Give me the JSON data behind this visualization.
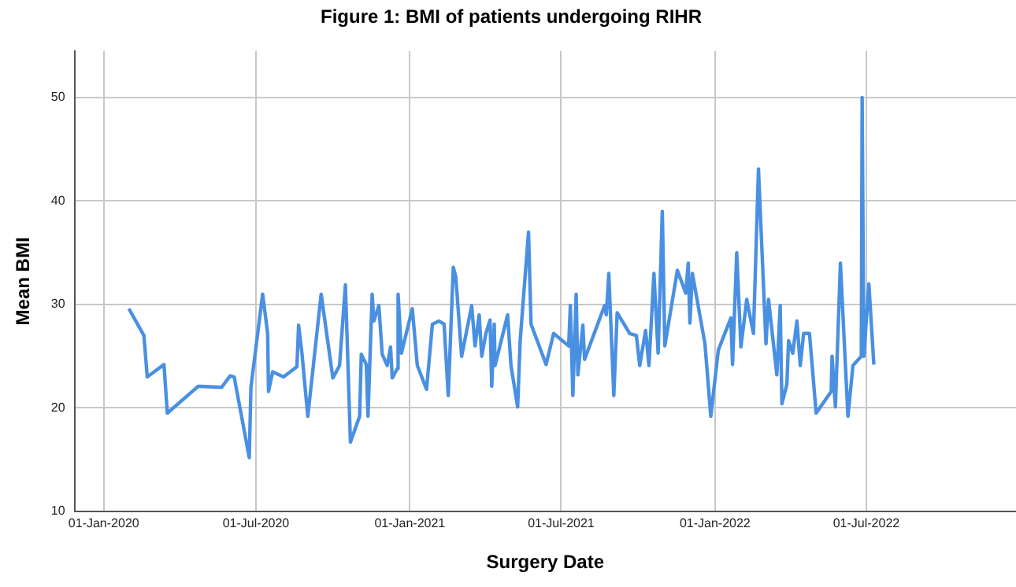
{
  "chart_data": {
    "type": "line",
    "title": "Figure 1: BMI of patients undergoing RIHR",
    "xlabel": "Surgery Date",
    "ylabel": "Mean BMI",
    "xlim": [
      "2019-11-27",
      "2022-12-27"
    ],
    "xticks": [
      {
        "value": "2020-01-01",
        "label": "01-Jan-2020"
      },
      {
        "value": "2020-07-01",
        "label": "01-Jul-2020"
      },
      {
        "value": "2021-01-01",
        "label": "01-Jan-2021"
      },
      {
        "value": "2021-07-01",
        "label": "01-Jul-2021"
      },
      {
        "value": "2022-01-01",
        "label": "01-Jan-2022"
      },
      {
        "value": "2022-07-01",
        "label": "01-Jul-2022"
      }
    ],
    "ylim": [
      10,
      54.5
    ],
    "yticks": [
      10,
      20,
      30,
      40,
      50
    ],
    "grid": true,
    "legend": false,
    "marker": "none",
    "line_style": "solid",
    "x": [
      "2020-01-31",
      "2020-02-18",
      "2020-02-22",
      "2020-03-13",
      "2020-03-17",
      "2020-04-23",
      "2020-05-21",
      "2020-05-31",
      "2020-06-05",
      "2020-06-23",
      "2020-06-25",
      "2020-07-09",
      "2020-07-15",
      "2020-07-16",
      "2020-07-21",
      "2020-08-03",
      "2020-08-19",
      "2020-08-21",
      "2020-08-25",
      "2020-09-01",
      "2020-09-17",
      "2020-10-01",
      "2020-10-09",
      "2020-10-16",
      "2020-10-22",
      "2020-11-02",
      "2020-11-04",
      "2020-11-10",
      "2020-11-12",
      "2020-11-17",
      "2020-11-19",
      "2020-11-25",
      "2020-11-29",
      "2020-12-05",
      "2020-12-09",
      "2020-12-11",
      "2020-12-17",
      "2020-12-18",
      "2020-12-22",
      "2021-01-04",
      "2021-01-10",
      "2021-01-21",
      "2021-01-28",
      "2021-02-05",
      "2021-02-11",
      "2021-02-16",
      "2021-02-22",
      "2021-02-25",
      "2021-03-04",
      "2021-03-16",
      "2021-03-20",
      "2021-03-25",
      "2021-03-28",
      "2021-04-02",
      "2021-04-07",
      "2021-04-09",
      "2021-04-12",
      "2021-04-13",
      "2021-04-28",
      "2021-05-02",
      "2021-05-10",
      "2021-05-13",
      "2021-05-23",
      "2021-05-26",
      "2021-06-13",
      "2021-06-22",
      "2021-07-10",
      "2021-07-12",
      "2021-07-15",
      "2021-07-19",
      "2021-07-21",
      "2021-07-27",
      "2021-07-29",
      "2021-08-22",
      "2021-08-24",
      "2021-08-27",
      "2021-09-02",
      "2021-09-06",
      "2021-09-21",
      "2021-09-29",
      "2021-10-03",
      "2021-10-10",
      "2021-10-14",
      "2021-10-20",
      "2021-10-25",
      "2021-10-30",
      "2021-11-02",
      "2021-11-17",
      "2021-11-27",
      "2021-11-30",
      "2021-12-02",
      "2021-12-05",
      "2021-12-20",
      "2021-12-27",
      "2022-01-05",
      "2022-01-20",
      "2022-01-22",
      "2022-01-27",
      "2022-02-01",
      "2022-02-08",
      "2022-02-16",
      "2022-02-22",
      "2022-03-03",
      "2022-03-06",
      "2022-03-16",
      "2022-03-20",
      "2022-03-22",
      "2022-03-28",
      "2022-03-30",
      "2022-04-04",
      "2022-04-09",
      "2022-04-13",
      "2022-04-17",
      "2022-04-24",
      "2022-05-02",
      "2022-05-20",
      "2022-05-21",
      "2022-05-25",
      "2022-05-31",
      "2022-06-09",
      "2022-06-15",
      "2022-06-25",
      "2022-06-26",
      "2022-06-28",
      "2022-07-04",
      "2022-07-10"
    ],
    "series": [
      {
        "color": "#4a90e2",
        "values": [
          29.6,
          27,
          23,
          24.2,
          19.5,
          22.1,
          22,
          23.1,
          23,
          15.2,
          22,
          31,
          27.2,
          21.6,
          23.5,
          23,
          24,
          28,
          25.3,
          19.2,
          31,
          22.9,
          24.1,
          31.9,
          16.7,
          19.2,
          25.2,
          24.2,
          19.2,
          31,
          28.4,
          29.9,
          25.2,
          24.1,
          25.9,
          22.9,
          23.8,
          31,
          25.3,
          29.6,
          24.1,
          21.8,
          28.1,
          28.4,
          28.1,
          21.2,
          33.6,
          32.7,
          25,
          29.9,
          26,
          29,
          25,
          27.2,
          28.5,
          22.1,
          28.1,
          24.1,
          29,
          24.1,
          20.1,
          26.5,
          37,
          28.1,
          24.2,
          27.2,
          26,
          29.9,
          21.2,
          31,
          23.2,
          28,
          24.7,
          29.9,
          29,
          33,
          21.2,
          29.2,
          27.2,
          27,
          24.1,
          27.5,
          24.1,
          33,
          25.3,
          39,
          26,
          33.3,
          31.1,
          34,
          28.2,
          33,
          26.2,
          19.2,
          25.6,
          28.7,
          24.2,
          35,
          25.9,
          30.5,
          27.2,
          43.1,
          26.2,
          30.5,
          23.2,
          29.9,
          20.4,
          22.3,
          26.5,
          25.3,
          28.4,
          24.1,
          27.2,
          27.2,
          19.5,
          21.6,
          25,
          20.1,
          34,
          19.2,
          24.1,
          25,
          50,
          25,
          32,
          24.2
        ]
      }
    ]
  }
}
